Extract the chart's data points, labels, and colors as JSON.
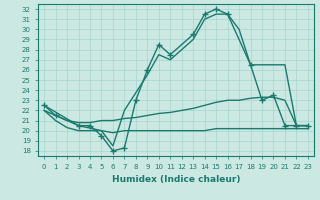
{
  "xlabel": "Humidex (Indice chaleur)",
  "ylabel": "",
  "bg_color": "#cce8e3",
  "line_color": "#1a7a6e",
  "grid_color": "#a8d5ce",
  "xlim": [
    -0.5,
    23.5
  ],
  "ylim": [
    17.5,
    32.5
  ],
  "xticks": [
    0,
    1,
    2,
    3,
    4,
    5,
    6,
    7,
    8,
    9,
    10,
    11,
    12,
    13,
    14,
    15,
    16,
    17,
    18,
    19,
    20,
    21,
    22,
    23
  ],
  "yticks": [
    18,
    19,
    20,
    21,
    22,
    23,
    24,
    25,
    26,
    27,
    28,
    29,
    30,
    31,
    32
  ],
  "curve1_x": [
    0,
    1,
    3,
    4,
    5,
    6,
    7,
    8,
    9,
    10,
    11,
    13,
    14,
    15,
    16,
    18,
    19,
    20,
    21,
    22,
    23
  ],
  "curve1_y": [
    22.5,
    21.5,
    20.5,
    20.5,
    19.5,
    18.0,
    18.3,
    23.0,
    26.0,
    28.5,
    27.5,
    29.5,
    31.5,
    32.0,
    31.5,
    26.5,
    23.0,
    23.5,
    20.5,
    20.5,
    20.5
  ],
  "curve2_x": [
    0,
    3,
    5,
    6,
    7,
    9,
    10,
    11,
    13,
    14,
    15,
    16,
    17,
    18,
    20,
    21,
    22,
    23
  ],
  "curve2_y": [
    22.5,
    20.5,
    20.0,
    18.5,
    22.0,
    25.5,
    27.5,
    27.0,
    29.0,
    31.0,
    31.5,
    31.5,
    30.0,
    26.5,
    26.5,
    26.5,
    20.5,
    20.5
  ],
  "curve3_x": [
    0,
    1,
    2,
    3,
    4,
    5,
    6,
    7,
    8,
    9,
    10,
    11,
    12,
    13,
    14,
    15,
    16,
    17,
    18,
    19,
    20,
    21,
    22,
    23
  ],
  "curve3_y": [
    22.0,
    21.5,
    21.0,
    20.8,
    20.8,
    21.0,
    21.0,
    21.2,
    21.3,
    21.5,
    21.7,
    21.8,
    22.0,
    22.2,
    22.5,
    22.8,
    23.0,
    23.0,
    23.2,
    23.3,
    23.3,
    23.0,
    20.5,
    20.5
  ],
  "curve4_x": [
    0,
    1,
    2,
    3,
    4,
    5,
    6,
    7,
    8,
    9,
    10,
    11,
    12,
    13,
    14,
    15,
    16,
    17,
    18,
    19,
    20,
    21,
    22,
    23
  ],
  "curve4_y": [
    22.0,
    21.0,
    20.3,
    20.0,
    20.0,
    20.0,
    19.8,
    20.0,
    20.0,
    20.0,
    20.0,
    20.0,
    20.0,
    20.0,
    20.0,
    20.2,
    20.2,
    20.2,
    20.2,
    20.2,
    20.2,
    20.2,
    20.2,
    20.2
  ]
}
